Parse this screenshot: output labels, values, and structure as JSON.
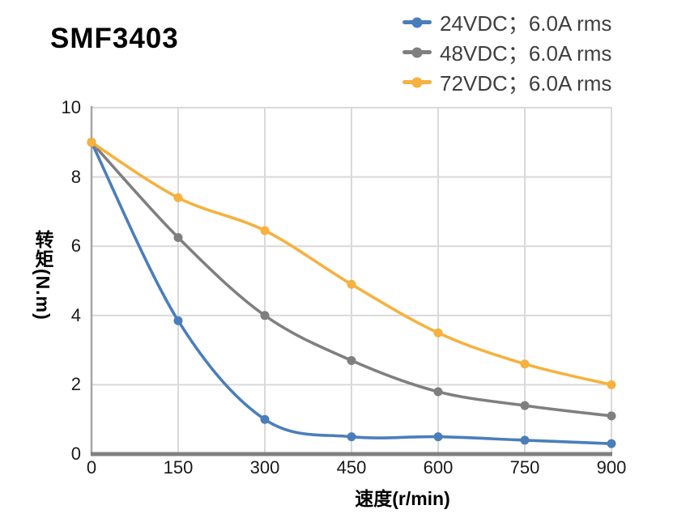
{
  "title": "SMF3403",
  "legend": {
    "position": "top-right",
    "items": [
      {
        "label": "24VDC；6.0A rms",
        "color": "#4a7ebb"
      },
      {
        "label": "48VDC；6.0A rms",
        "color": "#7f7f7f"
      },
      {
        "label": "72VDC；6.0A rms",
        "color": "#f6b13e"
      }
    ]
  },
  "axes": {
    "xlabel": "速度(r/min)",
    "ylabel": "转矩(N.m)"
  },
  "chart_data": {
    "type": "line",
    "title": "SMF3403",
    "xlabel": "速度(r/min)",
    "ylabel": "转矩(N.m)",
    "x": [
      0,
      150,
      300,
      450,
      600,
      750,
      900
    ],
    "series": [
      {
        "name": "24VDC；6.0A rms",
        "color": "#4a7ebb",
        "values": [
          9.0,
          3.85,
          1.0,
          0.5,
          0.5,
          0.4,
          0.3
        ]
      },
      {
        "name": "48VDC；6.0A rms",
        "color": "#7f7f7f",
        "values": [
          9.0,
          6.25,
          4.0,
          2.7,
          1.8,
          1.4,
          1.1
        ]
      },
      {
        "name": "72VDC；6.0A rms",
        "color": "#f6b13e",
        "values": [
          9.0,
          7.4,
          6.45,
          4.9,
          3.5,
          2.6,
          2.0
        ]
      }
    ],
    "xlim": [
      0,
      900
    ],
    "ylim": [
      0,
      10
    ],
    "xticks": [
      0,
      150,
      300,
      450,
      600,
      750,
      900
    ],
    "yticks": [
      0,
      2,
      4,
      6,
      8,
      10
    ],
    "grid": true,
    "legend_position": "top-right",
    "marker": "circle"
  },
  "style_colors": {
    "grid": "#d9d9d9",
    "y_axis_line": "#a6a6a6",
    "x_axis_line": "#808080",
    "tick_text": "#1a1a1a",
    "legend_text": "#3f3f3f",
    "title_text": "#000000"
  }
}
